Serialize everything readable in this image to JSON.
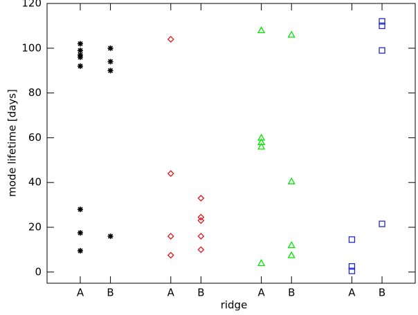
{
  "chart_data": {
    "type": "scatter",
    "xlabel": "ridge",
    "ylabel": "mode lifetime [days]",
    "xlim": [
      -0.1,
      12.1
    ],
    "ylim": [
      -5,
      120
    ],
    "xticks": [
      {
        "value": 1,
        "label": "A"
      },
      {
        "value": 2,
        "label": "B"
      },
      {
        "value": 4,
        "label": "A"
      },
      {
        "value": 5,
        "label": "B"
      },
      {
        "value": 7,
        "label": "A"
      },
      {
        "value": 8,
        "label": "B"
      },
      {
        "value": 10,
        "label": "A"
      },
      {
        "value": 11,
        "label": "B"
      }
    ],
    "yticks": [
      0,
      20,
      40,
      60,
      80,
      100,
      120
    ],
    "series": [
      {
        "color": "#000000",
        "marker": "asterisk",
        "x": [
          1,
          1,
          1,
          1,
          1,
          1,
          1,
          1,
          2,
          2,
          2,
          2
        ],
        "values": [
          102,
          99,
          97,
          96,
          92,
          28,
          17.5,
          9.5,
          100,
          94,
          90,
          16
        ]
      },
      {
        "color": "#e0141e",
        "marker": "diamond",
        "x": [
          4,
          4,
          4,
          4,
          5,
          5,
          5,
          5,
          5
        ],
        "values": [
          104,
          44,
          16,
          7.5,
          33,
          24.5,
          23,
          16,
          10
        ]
      },
      {
        "color": "#00e600",
        "marker": "triangle",
        "x": [
          7,
          7,
          7,
          7,
          7,
          8,
          8,
          8,
          8
        ],
        "values": [
          108,
          60,
          58,
          56,
          4,
          106,
          40.5,
          12,
          7.5
        ]
      },
      {
        "color": "#1e28d2",
        "marker": "square",
        "x": [
          10,
          10,
          10,
          11,
          11,
          11,
          11
        ],
        "values": [
          14.5,
          2.5,
          0.5,
          112,
          110,
          99,
          21.5
        ]
      }
    ]
  }
}
